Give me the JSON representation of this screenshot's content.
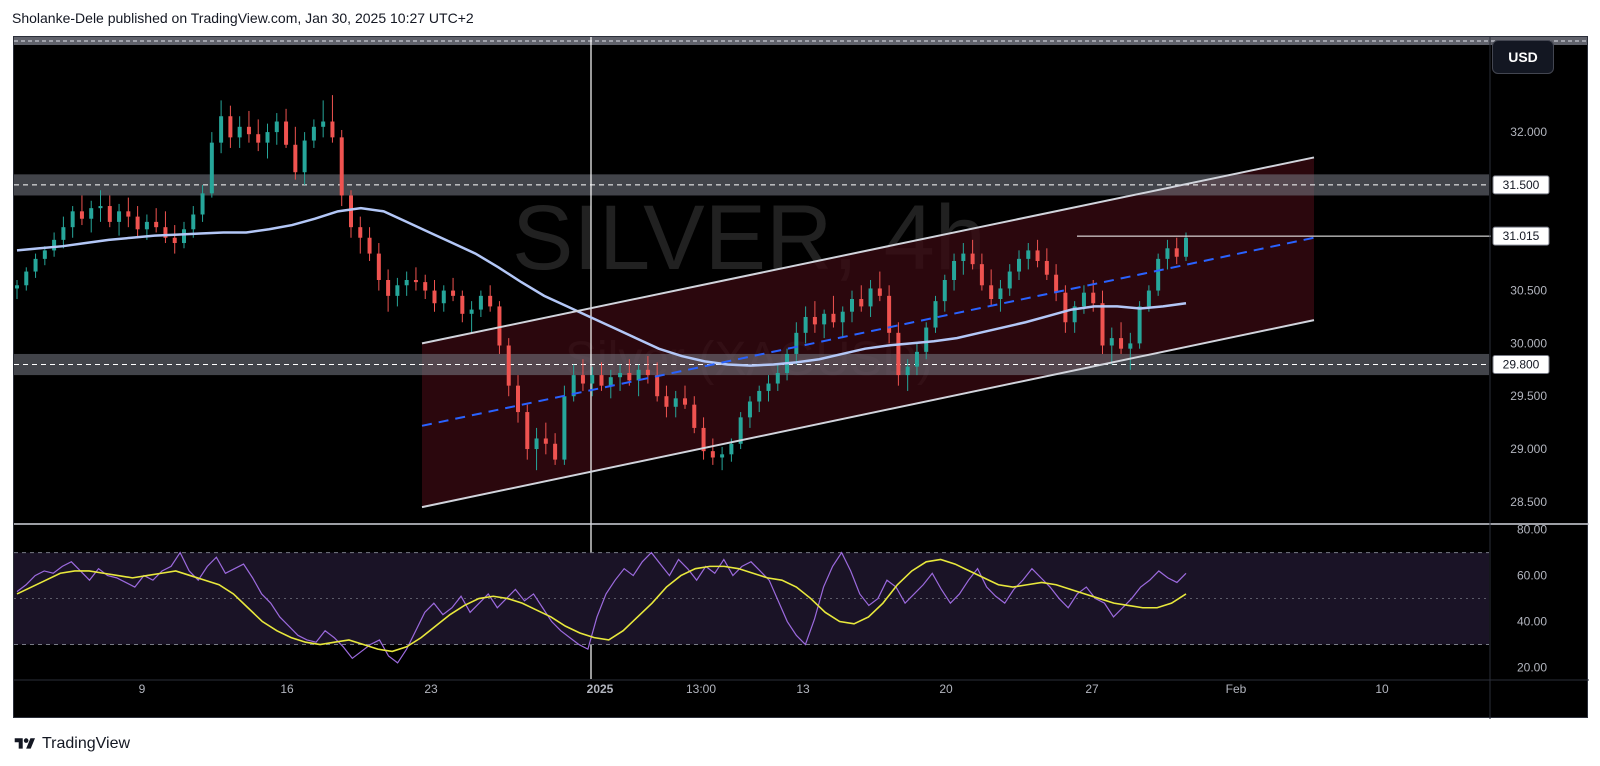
{
  "header": {
    "published_text": "Sholanke-Dele published on TradingView.com, Jan 30, 2025 10:27 UTC+2"
  },
  "footer": {
    "brand": "TradingView",
    "logo_icon": "tradingview-logo-icon"
  },
  "toolbar": {
    "currency_button": "USD"
  },
  "watermark": {
    "symbol_line": "SILVER, 4h",
    "name_line": "Silver (XAGUSD)"
  },
  "colors": {
    "background": "#000000",
    "bull_candle": "#26a69a",
    "bear_candle": "#ef5350",
    "ma_line": "#b3c7f7",
    "midline_dashed": "#2962ff",
    "channel_lines": "#d1d4dc",
    "channel_fill": "#3a0a12",
    "sr_zone": "#787b86",
    "rsi_line": "#9c6ade",
    "rsi_ma_line": "#e8e83c",
    "rsi_band": "#1a1326"
  },
  "chart_data": [
    {
      "type": "candlestick",
      "symbol": "SILVER",
      "name": "Silver (XAGUSD)",
      "timeframe": "4h",
      "ylim": [
        28.3,
        32.9
      ],
      "price_ticks": [
        "32.000",
        "31.500",
        "30.500",
        "30.000",
        "29.500",
        "29.000",
        "28.500"
      ],
      "time_ticks": [
        "9",
        "16",
        "23",
        "2025",
        "13:00",
        "13",
        "20",
        "27",
        "Feb",
        "10"
      ],
      "price_tags": [
        {
          "label": "31.500",
          "value": 31.5,
          "style": "white"
        },
        {
          "label": "31.015",
          "value": 31.015,
          "style": "white"
        },
        {
          "label": "29.800",
          "value": 29.8,
          "style": "white"
        }
      ],
      "support_resistance_zones": [
        {
          "low": 31.4,
          "high": 31.6,
          "dashed_level": 31.5
        },
        {
          "low": 29.7,
          "high": 29.9,
          "dashed_level": 29.8
        }
      ],
      "top_zone_level": 32.9,
      "horizontal_ray": {
        "value": 31.015
      },
      "ascending_channel": {
        "upper": [
          {
            "x_index": 0,
            "y": 30.0
          },
          {
            "x_index": 1,
            "y": 31.76
          }
        ],
        "middle": [
          {
            "x_index": 0,
            "y": 29.22
          },
          {
            "x_index": 1,
            "y": 31.0
          }
        ],
        "lower": [
          {
            "x_index": 0,
            "y": 28.45
          },
          {
            "x_index": 1,
            "y": 30.22
          }
        ]
      },
      "candles_ohlc": [
        [
          30.52,
          30.6,
          30.42,
          30.55
        ],
        [
          30.55,
          30.72,
          30.5,
          30.68
        ],
        [
          30.68,
          30.85,
          30.62,
          30.8
        ],
        [
          30.8,
          30.92,
          30.74,
          30.88
        ],
        [
          30.88,
          31.05,
          30.82,
          30.98
        ],
        [
          30.98,
          31.2,
          30.9,
          31.1
        ],
        [
          31.1,
          31.3,
          31.0,
          31.25
        ],
        [
          31.25,
          31.4,
          31.12,
          31.18
        ],
        [
          31.18,
          31.35,
          31.05,
          31.28
        ],
        [
          31.28,
          31.45,
          31.15,
          31.3
        ],
        [
          31.3,
          31.4,
          31.1,
          31.15
        ],
        [
          31.15,
          31.32,
          31.02,
          31.25
        ],
        [
          31.25,
          31.38,
          31.1,
          31.2
        ],
        [
          31.2,
          31.3,
          31.0,
          31.08
        ],
        [
          31.08,
          31.22,
          30.98,
          31.15
        ],
        [
          31.15,
          31.28,
          31.05,
          31.1
        ],
        [
          31.1,
          31.25,
          30.95,
          31.0
        ],
        [
          31.0,
          31.12,
          30.85,
          30.95
        ],
        [
          30.95,
          31.15,
          30.9,
          31.08
        ],
        [
          31.08,
          31.3,
          31.0,
          31.22
        ],
        [
          31.22,
          31.5,
          31.15,
          31.42
        ],
        [
          31.42,
          32.0,
          31.38,
          31.9
        ],
        [
          31.9,
          32.3,
          31.8,
          32.15
        ],
        [
          32.15,
          32.25,
          31.85,
          31.95
        ],
        [
          31.95,
          32.15,
          31.85,
          32.05
        ],
        [
          32.05,
          32.2,
          31.9,
          31.98
        ],
        [
          31.98,
          32.12,
          31.82,
          31.9
        ],
        [
          31.9,
          32.08,
          31.75,
          32.0
        ],
        [
          32.0,
          32.18,
          31.88,
          32.1
        ],
        [
          32.1,
          32.22,
          31.85,
          31.88
        ],
        [
          31.88,
          32.05,
          31.55,
          31.62
        ],
        [
          31.62,
          32.0,
          31.5,
          31.92
        ],
        [
          31.92,
          32.12,
          31.85,
          32.05
        ],
        [
          32.05,
          32.3,
          31.95,
          32.1
        ],
        [
          32.1,
          32.35,
          31.9,
          31.95
        ],
        [
          31.95,
          32.02,
          31.3,
          31.4
        ],
        [
          31.4,
          31.45,
          31.0,
          31.1
        ],
        [
          31.1,
          31.2,
          30.85,
          31.0
        ],
        [
          31.0,
          31.1,
          30.78,
          30.85
        ],
        [
          30.85,
          30.95,
          30.5,
          30.6
        ],
        [
          30.6,
          30.7,
          30.3,
          30.45
        ],
        [
          30.45,
          30.62,
          30.35,
          30.55
        ],
        [
          30.55,
          30.68,
          30.45,
          30.6
        ],
        [
          30.6,
          30.72,
          30.5,
          30.58
        ],
        [
          30.58,
          30.65,
          30.42,
          30.5
        ],
        [
          30.5,
          30.6,
          30.3,
          30.38
        ],
        [
          30.38,
          30.55,
          30.3,
          30.5
        ],
        [
          30.5,
          30.62,
          30.4,
          30.45
        ],
        [
          30.45,
          30.5,
          30.2,
          30.28
        ],
        [
          30.28,
          30.4,
          30.1,
          30.32
        ],
        [
          30.32,
          30.5,
          30.25,
          30.45
        ],
        [
          30.45,
          30.55,
          30.3,
          30.35
        ],
        [
          30.35,
          30.4,
          29.9,
          29.98
        ],
        [
          29.98,
          30.05,
          29.5,
          29.6
        ],
        [
          29.6,
          29.7,
          29.25,
          29.35
        ],
        [
          29.35,
          29.42,
          28.9,
          29.0
        ],
        [
          29.0,
          29.2,
          28.8,
          29.1
        ],
        [
          29.1,
          29.25,
          28.95,
          29.05
        ],
        [
          29.05,
          29.15,
          28.85,
          28.9
        ],
        [
          28.9,
          29.6,
          28.85,
          29.5
        ],
        [
          29.5,
          29.8,
          29.45,
          29.7
        ],
        [
          29.7,
          29.85,
          29.55,
          29.62
        ],
        [
          29.62,
          29.78,
          29.5,
          29.7
        ],
        [
          29.7,
          29.82,
          29.55,
          29.6
        ],
        [
          29.6,
          29.75,
          29.48,
          29.68
        ],
        [
          29.68,
          29.8,
          29.55,
          29.72
        ],
        [
          29.72,
          29.85,
          29.6,
          29.65
        ],
        [
          29.65,
          29.8,
          29.5,
          29.75
        ],
        [
          29.75,
          29.88,
          29.62,
          29.7
        ],
        [
          29.7,
          29.82,
          29.45,
          29.5
        ],
        [
          29.5,
          29.6,
          29.3,
          29.4
        ],
        [
          29.4,
          29.55,
          29.3,
          29.48
        ],
        [
          29.48,
          29.6,
          29.38,
          29.42
        ],
        [
          29.42,
          29.5,
          29.15,
          29.2
        ],
        [
          29.2,
          29.3,
          28.9,
          28.98
        ],
        [
          28.98,
          29.1,
          28.85,
          28.92
        ],
        [
          28.92,
          29.02,
          28.8,
          28.95
        ],
        [
          28.95,
          29.1,
          28.88,
          29.05
        ],
        [
          29.05,
          29.35,
          29.0,
          29.3
        ],
        [
          29.3,
          29.5,
          29.2,
          29.45
        ],
        [
          29.45,
          29.6,
          29.35,
          29.55
        ],
        [
          29.55,
          29.7,
          29.45,
          29.62
        ],
        [
          29.62,
          29.8,
          29.55,
          29.72
        ],
        [
          29.72,
          29.95,
          29.65,
          29.9
        ],
        [
          29.9,
          30.2,
          29.8,
          30.1
        ],
        [
          30.1,
          30.35,
          30.0,
          30.25
        ],
        [
          30.25,
          30.4,
          30.1,
          30.18
        ],
        [
          30.18,
          30.32,
          30.05,
          30.28
        ],
        [
          30.28,
          30.45,
          30.15,
          30.2
        ],
        [
          30.2,
          30.35,
          30.05,
          30.3
        ],
        [
          30.3,
          30.5,
          30.2,
          30.42
        ],
        [
          30.42,
          30.55,
          30.3,
          30.35
        ],
        [
          30.35,
          30.6,
          30.25,
          30.52
        ],
        [
          30.52,
          30.68,
          30.4,
          30.45
        ],
        [
          30.45,
          30.55,
          30.0,
          30.1
        ],
        [
          30.1,
          30.2,
          29.6,
          29.7
        ],
        [
          29.7,
          29.85,
          29.55,
          29.78
        ],
        [
          29.78,
          30.0,
          29.7,
          29.92
        ],
        [
          29.92,
          30.2,
          29.85,
          30.15
        ],
        [
          30.15,
          30.45,
          30.1,
          30.4
        ],
        [
          30.4,
          30.65,
          30.3,
          30.6
        ],
        [
          30.6,
          30.85,
          30.5,
          30.78
        ],
        [
          30.78,
          30.95,
          30.65,
          30.85
        ],
        [
          30.85,
          30.98,
          30.7,
          30.75
        ],
        [
          30.75,
          30.85,
          30.5,
          30.55
        ],
        [
          30.55,
          30.7,
          30.35,
          30.42
        ],
        [
          30.42,
          30.6,
          30.3,
          30.52
        ],
        [
          30.52,
          30.75,
          30.45,
          30.68
        ],
        [
          30.68,
          30.88,
          30.6,
          30.8
        ],
        [
          30.8,
          30.95,
          30.7,
          30.88
        ],
        [
          30.88,
          30.98,
          30.72,
          30.78
        ],
        [
          30.78,
          30.9,
          30.6,
          30.65
        ],
        [
          30.65,
          30.75,
          30.4,
          30.48
        ],
        [
          30.48,
          30.55,
          30.1,
          30.2
        ],
        [
          30.2,
          30.4,
          30.1,
          30.35
        ],
        [
          30.35,
          30.55,
          30.28,
          30.48
        ],
        [
          30.48,
          30.6,
          30.3,
          30.38
        ],
        [
          30.38,
          30.5,
          29.9,
          29.98
        ],
        [
          29.98,
          30.15,
          29.8,
          30.05
        ],
        [
          30.05,
          30.2,
          29.9,
          29.95
        ],
        [
          29.95,
          30.1,
          29.75,
          30.0
        ],
        [
          30.0,
          30.4,
          29.95,
          30.35
        ],
        [
          30.35,
          30.55,
          30.3,
          30.5
        ],
        [
          30.5,
          30.85,
          30.45,
          30.8
        ],
        [
          30.8,
          30.98,
          30.7,
          30.9
        ],
        [
          30.9,
          31.0,
          30.75,
          30.82
        ],
        [
          30.82,
          31.05,
          30.78,
          31.0
        ]
      ],
      "series": [
        {
          "name": "Moving average",
          "values": [
            30.88,
            30.9,
            30.92,
            30.95,
            30.98,
            31.0,
            31.02,
            31.03,
            31.04,
            31.05,
            31.05,
            31.08,
            31.12,
            31.18,
            31.25,
            31.28,
            31.25,
            31.15,
            31.05,
            30.95,
            30.85,
            30.72,
            30.58,
            30.45,
            30.35,
            30.25,
            30.15,
            30.05,
            29.95,
            29.88,
            29.83,
            29.8,
            29.79,
            29.8,
            29.82,
            29.85,
            29.9,
            29.95,
            29.98,
            30.0,
            30.02,
            30.05,
            30.1,
            30.15,
            30.2,
            30.26,
            30.32,
            30.35,
            30.35,
            30.33,
            30.35,
            30.38
          ]
        }
      ]
    },
    {
      "type": "line",
      "name": "RSI",
      "ylim": [
        15,
        82
      ],
      "y_ticks": [
        "80.00",
        "60.00",
        "40.00",
        "20.00"
      ],
      "band": [
        30,
        70
      ],
      "midline": 50,
      "series": [
        {
          "name": "RSI",
          "values": [
            53,
            56,
            60,
            62,
            61,
            64,
            66,
            62,
            58,
            63,
            60,
            59,
            57,
            55,
            60,
            58,
            62,
            64,
            70,
            62,
            58,
            64,
            68,
            61,
            63,
            65,
            59,
            52,
            48,
            42,
            38,
            34,
            32,
            31,
            36,
            33,
            29,
            24,
            27,
            30,
            32,
            25,
            22,
            28,
            36,
            44,
            48,
            43,
            46,
            51,
            44,
            48,
            52,
            46,
            50,
            54,
            49,
            52,
            46,
            40,
            36,
            33,
            30,
            28,
            42,
            52,
            58,
            63,
            60,
            66,
            70,
            65,
            60,
            67,
            63,
            58,
            64,
            61,
            67,
            60,
            64,
            66,
            62,
            58,
            49,
            40,
            34,
            30,
            41,
            55,
            64,
            70,
            62,
            52,
            47,
            50,
            58,
            55,
            48,
            52,
            56,
            61,
            54,
            48,
            52,
            58,
            63,
            55,
            51,
            48,
            54,
            58,
            63,
            59,
            55,
            50,
            46,
            52,
            55,
            50,
            48,
            42,
            46,
            50,
            55,
            58,
            62,
            59,
            57,
            61
          ]
        },
        {
          "name": "RSI-based MA",
          "values": [
            52,
            55,
            58,
            61,
            62,
            62,
            61,
            60,
            59,
            60,
            61,
            62,
            60,
            58,
            56,
            52,
            46,
            40,
            36,
            33,
            31,
            30,
            31,
            32,
            30,
            28,
            27,
            29,
            33,
            38,
            43,
            47,
            50,
            51,
            50,
            48,
            45,
            42,
            38,
            35,
            33,
            32,
            36,
            42,
            48,
            55,
            60,
            63,
            64,
            64,
            63,
            61,
            59,
            58,
            55,
            50,
            44,
            40,
            39,
            42,
            48,
            56,
            62,
            66,
            67,
            65,
            62,
            59,
            56,
            55,
            56,
            57,
            56,
            54,
            52,
            50,
            48,
            47,
            46,
            46,
            48,
            52
          ]
        }
      ]
    }
  ]
}
